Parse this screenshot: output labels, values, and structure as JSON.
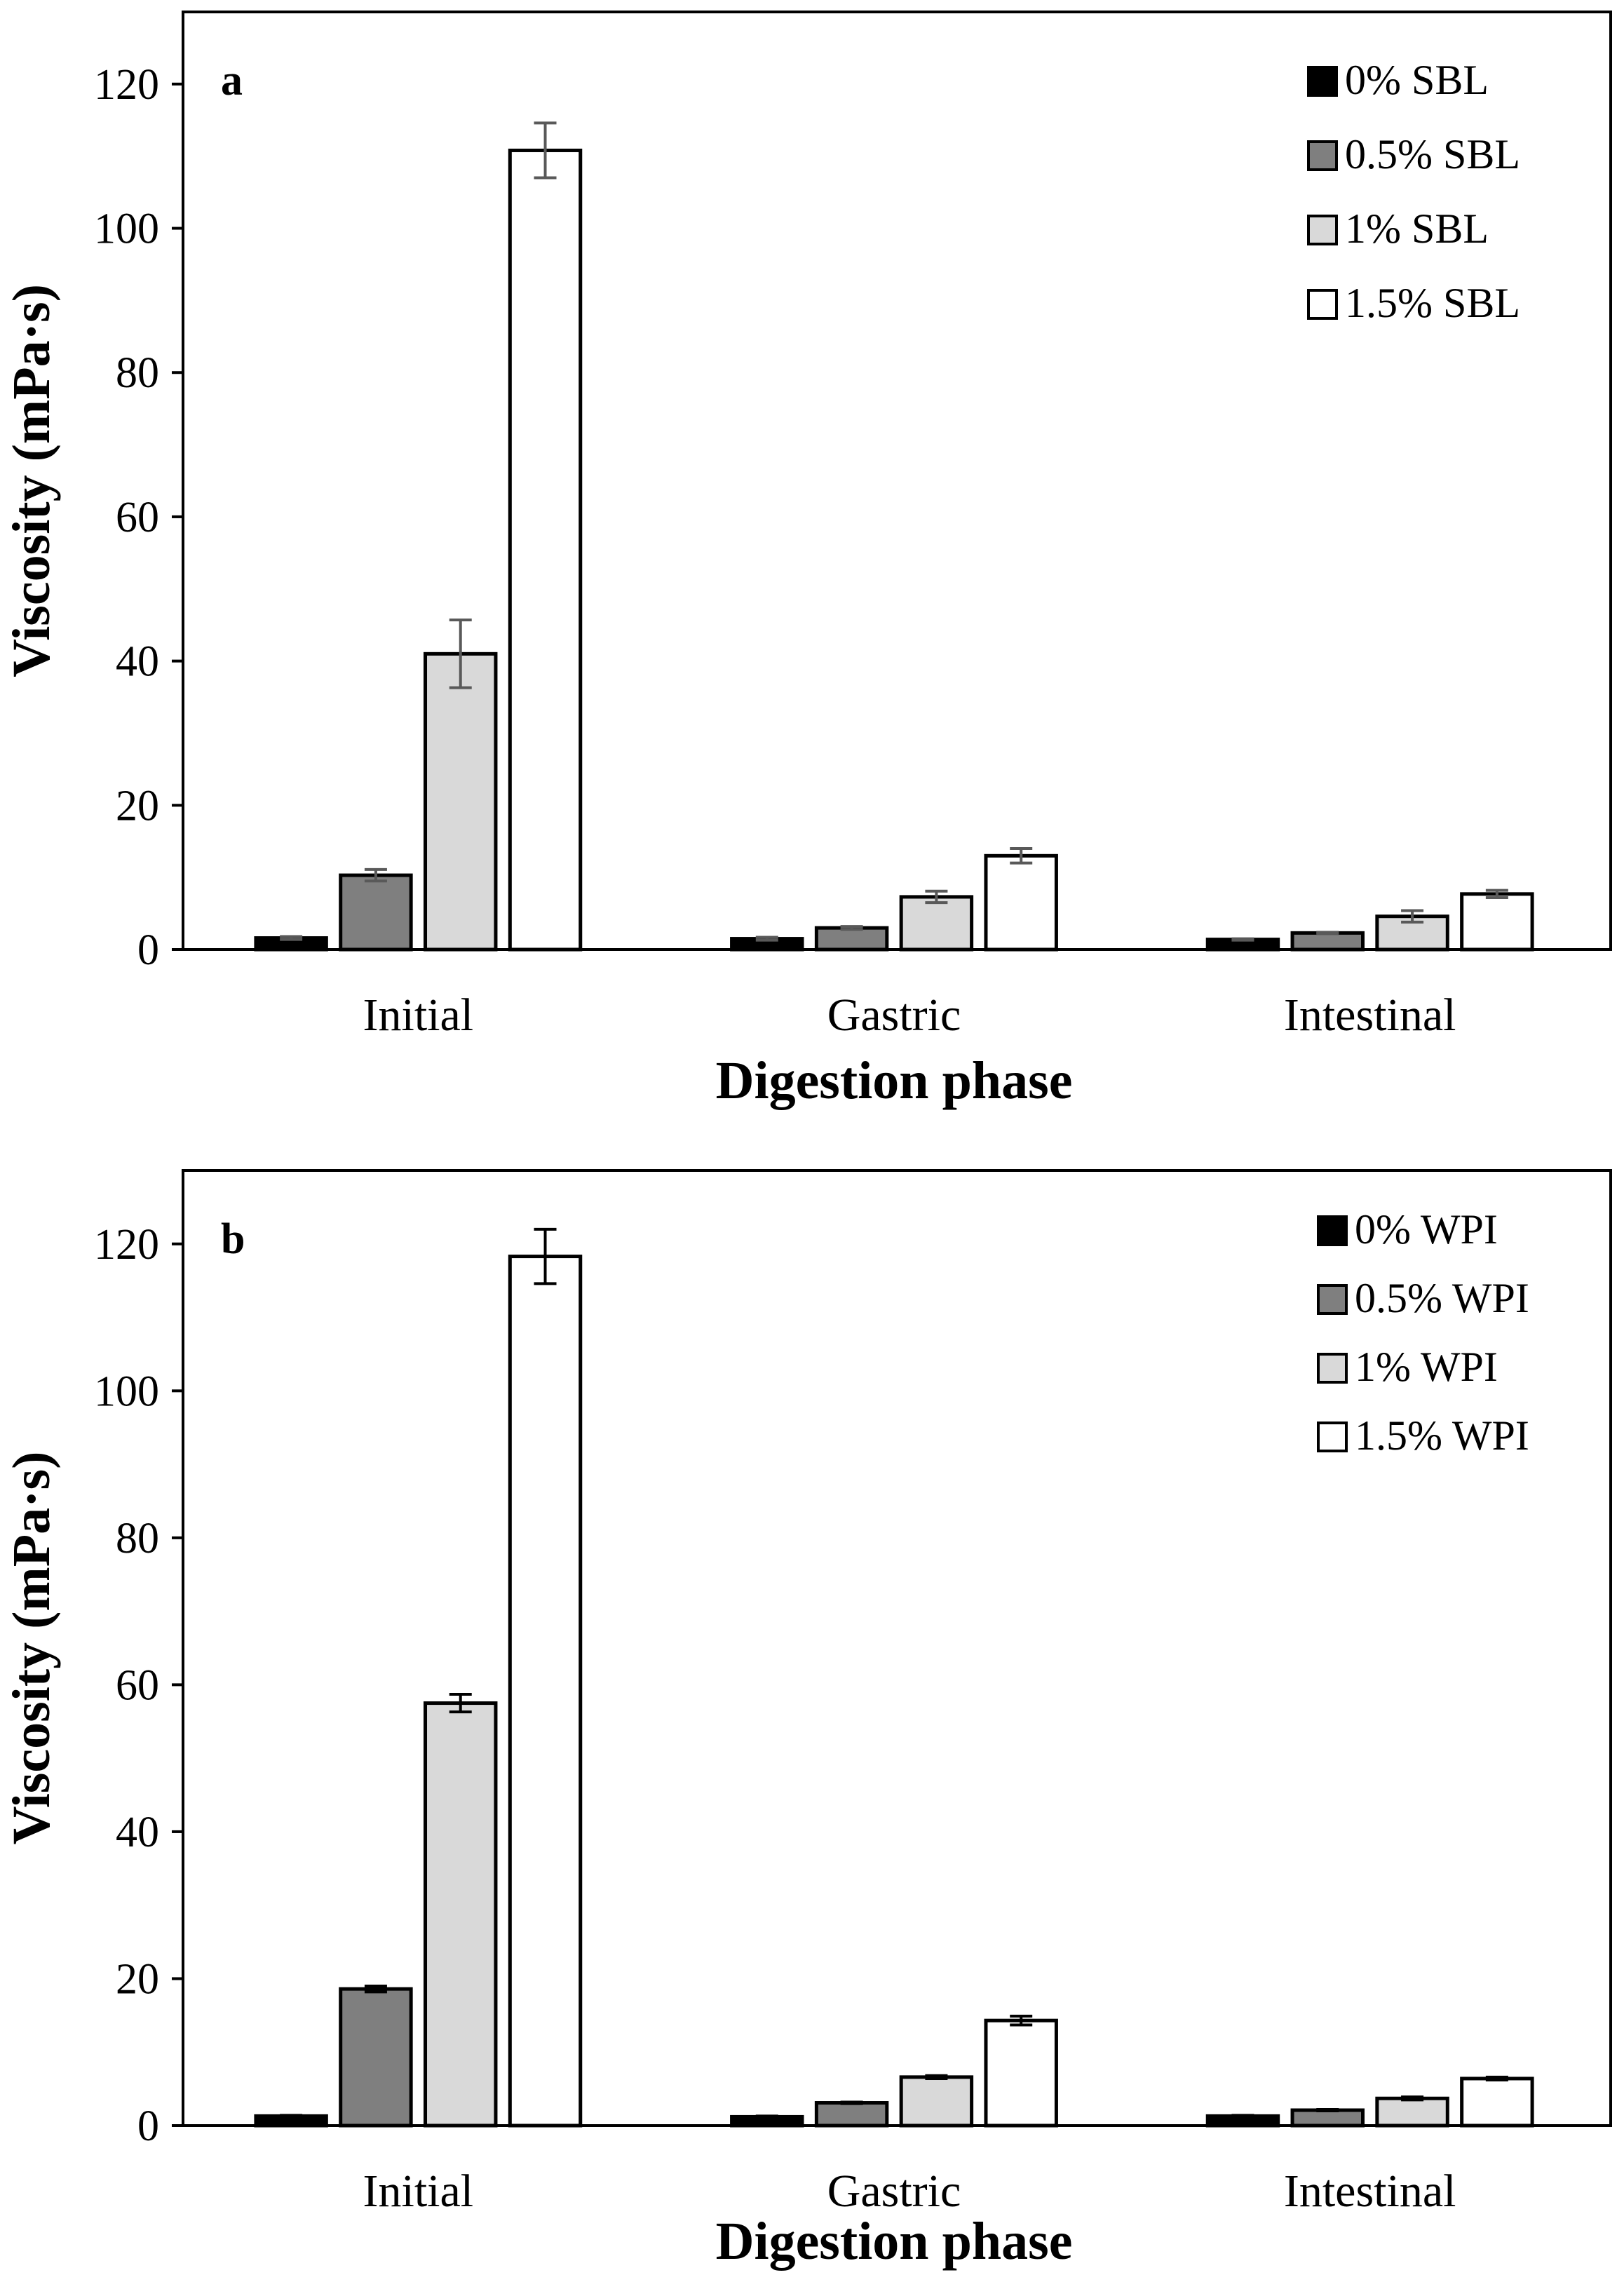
{
  "chart_data": [
    {
      "type": "bar",
      "panel_label": "a",
      "xlabel": "Digestion phase",
      "ylabel": "Viscosity (mPa·s)",
      "ylim": [
        0,
        130
      ],
      "yticks": [
        0,
        20,
        40,
        60,
        80,
        100,
        120
      ],
      "grid": false,
      "legend_placement": "top-right",
      "categories": [
        "Initial",
        "Gastric",
        "Intestinal"
      ],
      "series": [
        {
          "name": "0% SBL",
          "color": "#000000",
          "values": [
            1.6,
            1.5,
            1.4
          ],
          "errors": [
            0.2,
            0.2,
            0.1
          ]
        },
        {
          "name": "0.5% SBL",
          "color": "#7f7f7f",
          "values": [
            10.3,
            3.0,
            2.3
          ],
          "errors": [
            0.8,
            0.2,
            0.1
          ]
        },
        {
          "name": "1% SBL",
          "color": "#d9d9d9",
          "values": [
            41.0,
            7.3,
            4.6
          ],
          "errors": [
            4.7,
            0.8,
            0.8
          ]
        },
        {
          "name": "1.5% SBL",
          "color": "#ffffff",
          "values": [
            110.8,
            13.0,
            7.7
          ],
          "errors": [
            3.8,
            1.0,
            0.5
          ]
        }
      ]
    },
    {
      "type": "bar",
      "panel_label": "b",
      "xlabel": "Digestion phase",
      "ylabel": "Viscosity (mPa·s)",
      "ylim": [
        0,
        130
      ],
      "yticks": [
        0,
        20,
        40,
        60,
        80,
        100,
        120
      ],
      "grid": false,
      "legend_placement": "top-right",
      "categories": [
        "Initial",
        "Gastric",
        "Intestinal"
      ],
      "series": [
        {
          "name": "0% WPI",
          "color": "#000000",
          "values": [
            1.3,
            1.2,
            1.3
          ],
          "errors": [
            0.1,
            0.1,
            0.1
          ]
        },
        {
          "name": "0.5% WPI",
          "color": "#7f7f7f",
          "values": [
            18.6,
            3.1,
            2.1
          ],
          "errors": [
            0.4,
            0.1,
            0.1
          ]
        },
        {
          "name": "1% WPI",
          "color": "#d9d9d9",
          "values": [
            57.5,
            6.6,
            3.7
          ],
          "errors": [
            1.2,
            0.2,
            0.2
          ]
        },
        {
          "name": "1.5% WPI",
          "color": "#ffffff",
          "values": [
            118.3,
            14.3,
            6.4
          ],
          "errors": [
            3.7,
            0.6,
            0.2
          ]
        }
      ]
    }
  ]
}
